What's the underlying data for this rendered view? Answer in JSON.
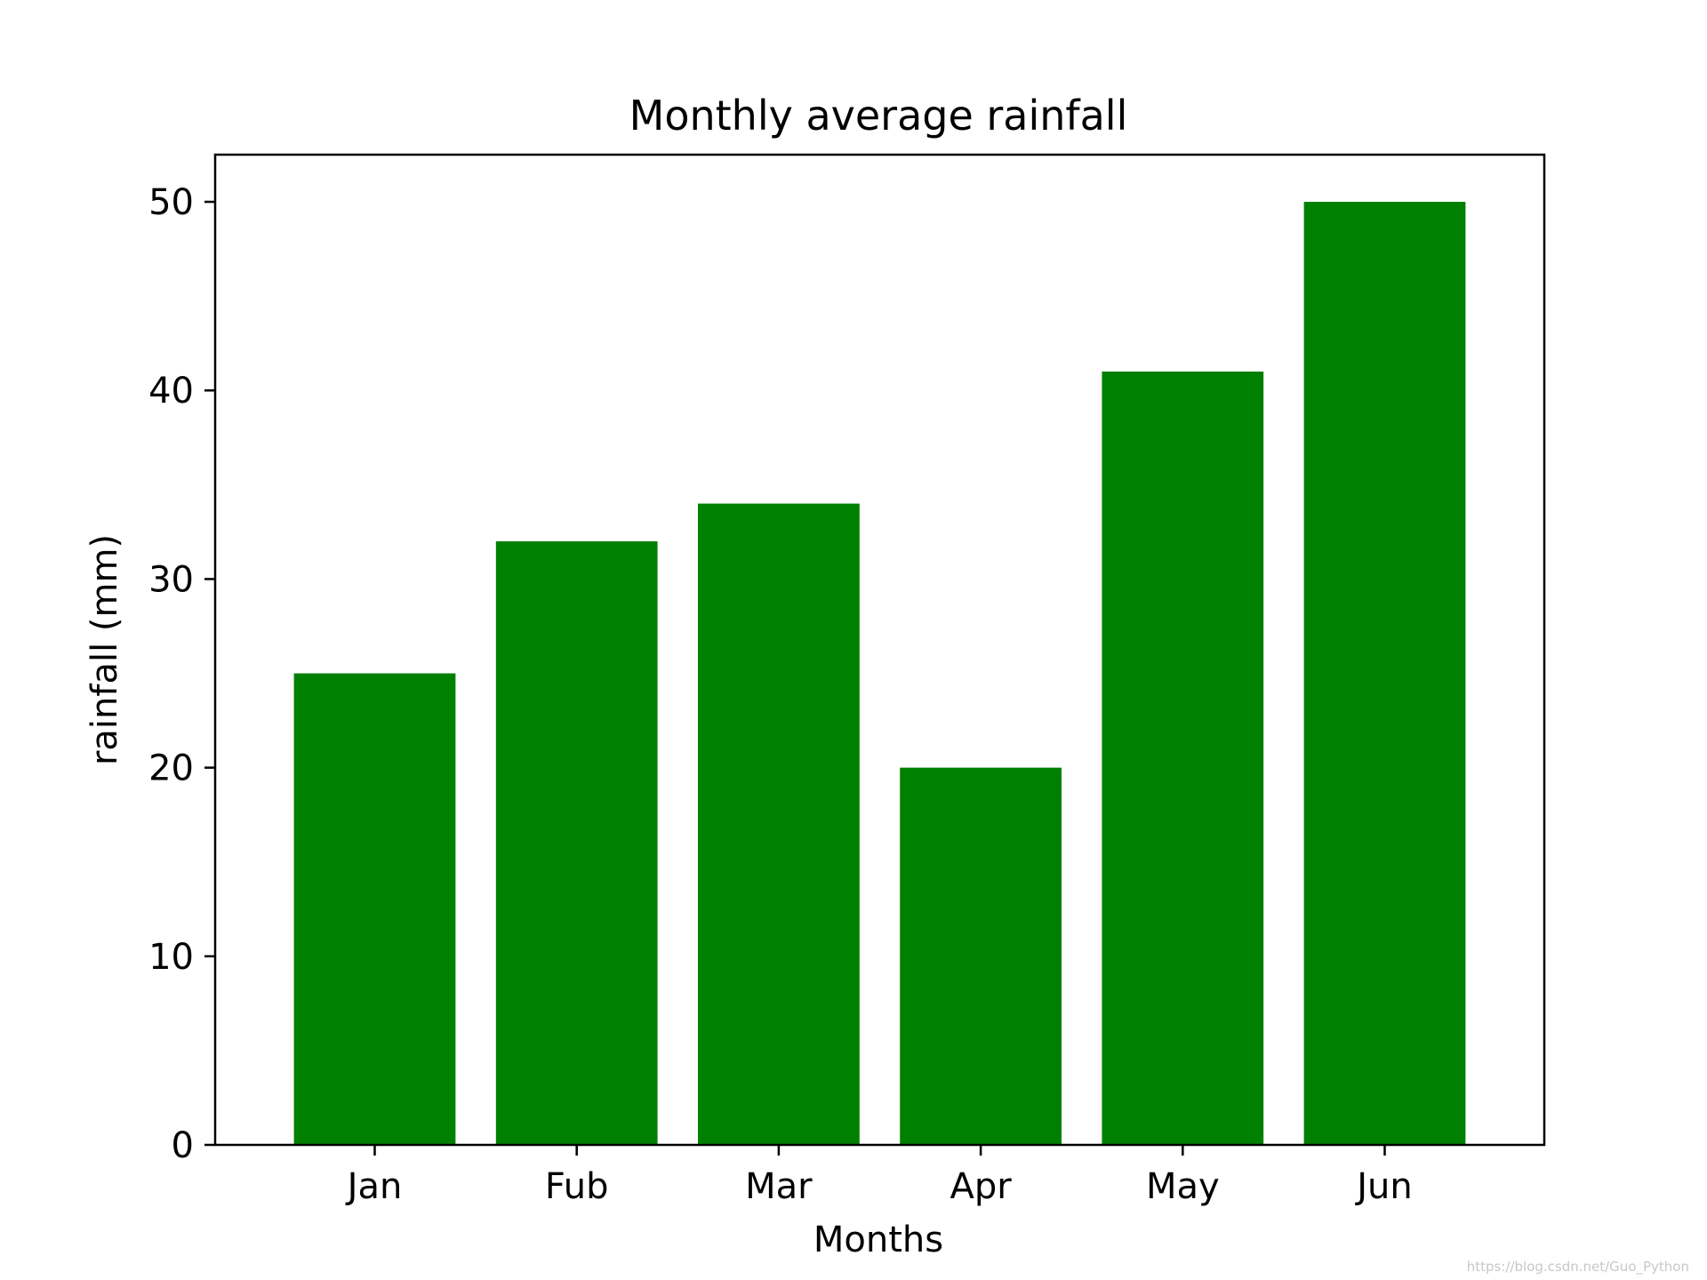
{
  "chart_data": {
    "type": "bar",
    "title": "Monthly average rainfall",
    "xlabel": "Months",
    "ylabel": "rainfall (mm)",
    "categories": [
      "Jan",
      "Fub",
      "Mar",
      "Apr",
      "May",
      "Jun"
    ],
    "values": [
      25,
      32,
      34,
      20,
      41,
      50
    ],
    "ylim": [
      0,
      52.5
    ],
    "yticks": [
      0,
      10,
      20,
      30,
      40,
      50
    ],
    "bar_color": "#008000",
    "grid": false,
    "legend": "none"
  },
  "watermark": "https://blog.csdn.net/Guo_Python"
}
